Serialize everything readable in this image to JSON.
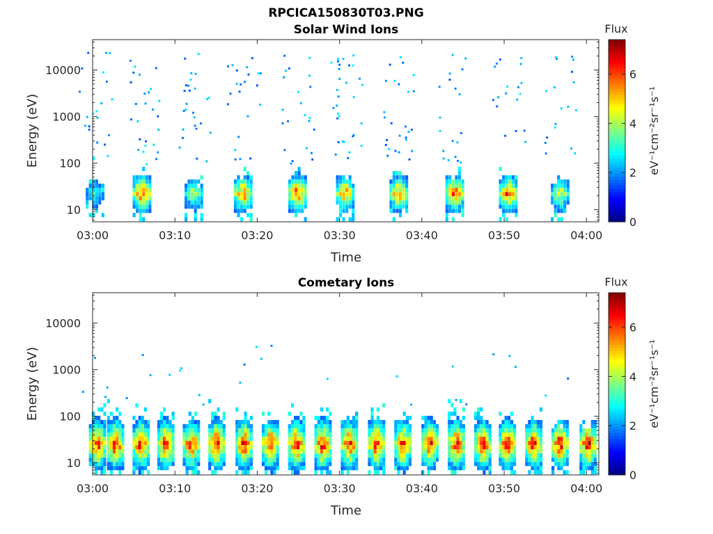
{
  "figure": {
    "title": "RPCICA150830T03.PNG"
  },
  "colormap": [
    "#00007f",
    "#0000ff",
    "#007fff",
    "#00ffff",
    "#7fff7f",
    "#ffff00",
    "#ff7f00",
    "#ff0000",
    "#7f0000"
  ],
  "chart_data": [
    {
      "type": "heatmap",
      "title": "Solar Wind Ions",
      "xlabel": "Time",
      "ylabel": "Energy (eV)",
      "x_ticks": [
        "03:00",
        "03:10",
        "03:20",
        "03:30",
        "03:40",
        "03:50",
        "04:00"
      ],
      "y_ticks": [
        "10",
        "100",
        "1000",
        "10000"
      ],
      "y_scale": "log",
      "ylim": [
        5.5,
        45000
      ],
      "xlim_minutes": [
        0,
        61.5
      ],
      "colorbar": {
        "label_top": "Flux",
        "label": "eV⁻¹cm⁻²sr⁻¹s⁻¹",
        "ticks": [
          "0",
          "2",
          "4",
          "6"
        ],
        "range": [
          0,
          7.4
        ]
      },
      "bursts": [
        {
          "t": 0.3,
          "peak_flux": 3.6,
          "max_energy_ev": 45
        },
        {
          "t": 6.0,
          "peak_flux": 6.8,
          "max_energy_ev": 60
        },
        {
          "t": 12.3,
          "peak_flux": 4.8,
          "max_energy_ev": 40
        },
        {
          "t": 18.3,
          "peak_flux": 6.6,
          "max_energy_ev": 70
        },
        {
          "t": 24.9,
          "peak_flux": 6.9,
          "max_energy_ev": 65
        },
        {
          "t": 30.7,
          "peak_flux": 6.2,
          "max_energy_ev": 50
        },
        {
          "t": 37.2,
          "peak_flux": 6.3,
          "max_energy_ev": 60
        },
        {
          "t": 44.0,
          "peak_flux": 6.8,
          "max_energy_ev": 70
        },
        {
          "t": 50.5,
          "peak_flux": 6.7,
          "max_energy_ev": 65
        },
        {
          "t": 56.8,
          "peak_flux": 5.2,
          "max_energy_ev": 45
        }
      ],
      "sparse_counts": "scattered single-count pixels (flux ~1.5–2.5) from ~100 eV to ~25000 eV"
    },
    {
      "type": "heatmap",
      "title": "Cometary Ions",
      "xlabel": "Time",
      "ylabel": "Energy (eV)",
      "x_ticks": [
        "03:00",
        "03:10",
        "03:20",
        "03:30",
        "03:40",
        "03:50",
        "04:00"
      ],
      "y_ticks": [
        "10",
        "100",
        "1000",
        "10000"
      ],
      "y_scale": "log",
      "ylim": [
        5.5,
        45000
      ],
      "xlim_minutes": [
        0,
        61.5
      ],
      "colorbar": {
        "label_top": "Flux",
        "label": "eV⁻¹cm⁻²sr⁻¹s⁻¹",
        "ticks": [
          "0",
          "2",
          "4",
          "6"
        ],
        "range": [
          0,
          7.4
        ]
      },
      "bursts": [
        {
          "t": 0.6,
          "peak_flux": 7.2,
          "max_energy_ev": 150
        },
        {
          "t": 2.8,
          "peak_flux": 7.3,
          "max_energy_ev": 180
        },
        {
          "t": 5.9,
          "peak_flux": 7.3,
          "max_energy_ev": 140
        },
        {
          "t": 8.9,
          "peak_flux": 7.3,
          "max_energy_ev": 160
        },
        {
          "t": 12.0,
          "peak_flux": 7.2,
          "max_energy_ev": 110
        },
        {
          "t": 15.1,
          "peak_flux": 7.4,
          "max_energy_ev": 200
        },
        {
          "t": 18.4,
          "peak_flux": 7.3,
          "max_energy_ev": 130
        },
        {
          "t": 21.6,
          "peak_flux": 7.3,
          "max_energy_ev": 110
        },
        {
          "t": 24.8,
          "peak_flux": 7.3,
          "max_energy_ev": 170
        },
        {
          "t": 28.0,
          "peak_flux": 7.4,
          "max_energy_ev": 130
        },
        {
          "t": 31.2,
          "peak_flux": 7.2,
          "max_energy_ev": 100
        },
        {
          "t": 34.5,
          "peak_flux": 7.4,
          "max_energy_ev": 150
        },
        {
          "t": 37.7,
          "peak_flux": 7.2,
          "max_energy_ev": 110
        },
        {
          "t": 41.0,
          "peak_flux": 7.2,
          "max_energy_ev": 100
        },
        {
          "t": 44.2,
          "peak_flux": 7.3,
          "max_energy_ev": 180
        },
        {
          "t": 47.4,
          "peak_flux": 7.3,
          "max_energy_ev": 160
        },
        {
          "t": 50.4,
          "peak_flux": 7.3,
          "max_energy_ev": 120
        },
        {
          "t": 53.6,
          "peak_flux": 7.3,
          "max_energy_ev": 120
        },
        {
          "t": 56.8,
          "peak_flux": 7.4,
          "max_energy_ev": 70
        },
        {
          "t": 60.2,
          "peak_flux": 7.4,
          "max_energy_ev": 60
        }
      ],
      "sparse_counts": "scattered single-count pixels (flux ~1.5–2.5) from ~150 eV to ~4500 eV"
    }
  ]
}
